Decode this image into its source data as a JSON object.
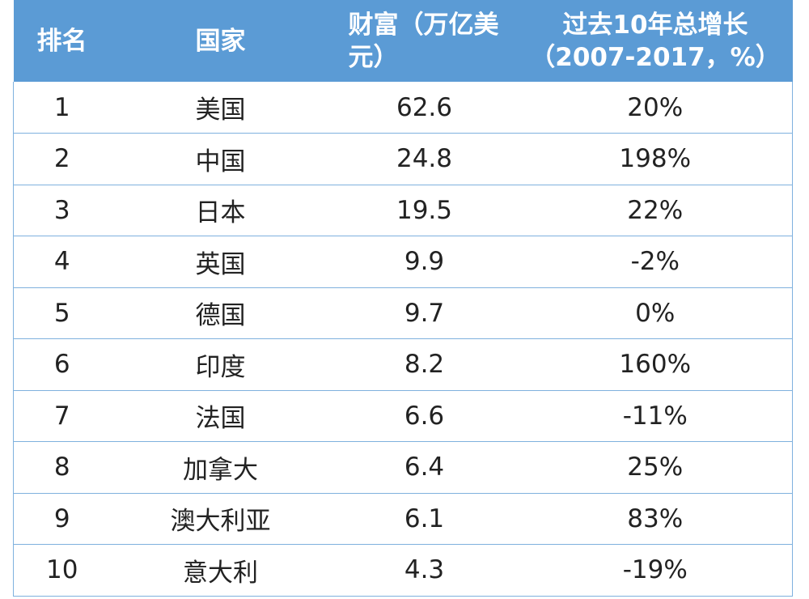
{
  "table": {
    "headers": {
      "rank": "排名",
      "country": "国家",
      "wealth": "财富（万亿美元）",
      "growth": "过去10年总增长（2007-2017，%）"
    },
    "rows": [
      {
        "rank": "1",
        "country": "美国",
        "wealth": "62.6",
        "growth": "20%"
      },
      {
        "rank": "2",
        "country": "中国",
        "wealth": "24.8",
        "growth": "198%"
      },
      {
        "rank": "3",
        "country": "日本",
        "wealth": "19.5",
        "growth": "22%"
      },
      {
        "rank": "4",
        "country": "英国",
        "wealth": "9.9",
        "growth": "-2%"
      },
      {
        "rank": "5",
        "country": "德国",
        "wealth": "9.7",
        "growth": "0%"
      },
      {
        "rank": "6",
        "country": "印度",
        "wealth": "8.2",
        "growth": "160%"
      },
      {
        "rank": "7",
        "country": "法国",
        "wealth": "6.6",
        "growth": "-11%"
      },
      {
        "rank": "8",
        "country": "加拿大",
        "wealth": "6.4",
        "growth": "25%"
      },
      {
        "rank": "9",
        "country": "澳大利亚",
        "wealth": "6.1",
        "growth": "83%"
      },
      {
        "rank": "10",
        "country": "意大利",
        "wealth": "4.3",
        "growth": "-19%"
      }
    ]
  },
  "colors": {
    "header_bg": "#5b9bd5",
    "header_text": "#ffffff",
    "border": "#7fb1de",
    "cell_text": "#222222"
  }
}
